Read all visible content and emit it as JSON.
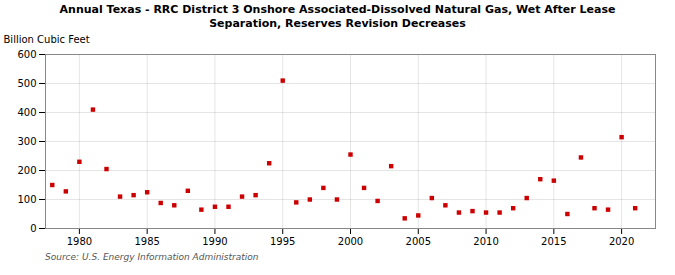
{
  "chart_data": {
    "type": "scatter",
    "title": "Annual Texas - RRC District 3 Onshore Associated-Dissolved Natural Gas, Wet After Lease\nSeparation, Reserves Revision Decreases",
    "ylabel": "Billion Cubic Feet",
    "source": "Source: U.S. Energy Information Administration",
    "x": [
      1978,
      1979,
      1980,
      1981,
      1982,
      1983,
      1984,
      1985,
      1986,
      1987,
      1988,
      1989,
      1990,
      1991,
      1992,
      1993,
      1994,
      1995,
      1996,
      1997,
      1998,
      1999,
      2000,
      2001,
      2002,
      2003,
      2004,
      2005,
      2006,
      2007,
      2008,
      2009,
      2010,
      2011,
      2012,
      2013,
      2014,
      2015,
      2016,
      2017,
      2018,
      2019,
      2020,
      2021
    ],
    "values": [
      150,
      128,
      230,
      410,
      205,
      110,
      115,
      125,
      88,
      80,
      130,
      65,
      75,
      75,
      110,
      115,
      225,
      510,
      90,
      100,
      140,
      100,
      255,
      140,
      95,
      215,
      35,
      45,
      105,
      80,
      55,
      60,
      55,
      55,
      70,
      105,
      170,
      165,
      50,
      245,
      70,
      65,
      315,
      70
    ],
    "color": "#cc0000",
    "marker": "square",
    "xlim": [
      1977.5,
      2022.5
    ],
    "xticks": [
      1980,
      1985,
      1990,
      1995,
      2000,
      2005,
      2010,
      2015,
      2020
    ],
    "ylim": [
      0,
      600
    ],
    "yticks": [
      0,
      100,
      200,
      300,
      400,
      500,
      600
    ],
    "grid": true
  }
}
